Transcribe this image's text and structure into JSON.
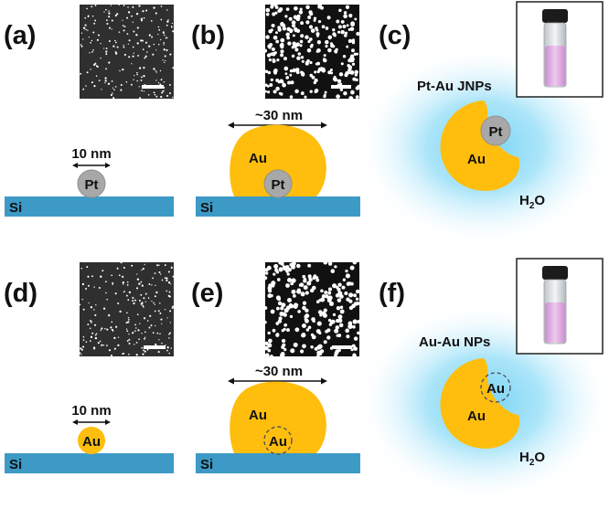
{
  "panels": {
    "a": {
      "label": "(a)",
      "size_label": "10 nm",
      "particle": "Pt",
      "substrate": "Si"
    },
    "b": {
      "label": "(b)",
      "size_label": "~30 nm",
      "outer": "Au",
      "core": "Pt",
      "substrate": "Si"
    },
    "c": {
      "label": "(c)",
      "title": "Pt-Au JNPs",
      "outer": "Au",
      "core": "Pt",
      "solvent": "H",
      "solvent_sub": "2",
      "solvent_end": "O"
    },
    "d": {
      "label": "(d)",
      "size_label": "10 nm",
      "particle": "Au",
      "substrate": "Si"
    },
    "e": {
      "label": "(e)",
      "size_label": "~30 nm",
      "outer": "Au",
      "core": "Au",
      "substrate": "Si"
    },
    "f": {
      "label": "(f)",
      "title": "Au-Au NPs",
      "outer": "Au",
      "core": "Au",
      "solvent": "H",
      "solvent_sub": "2",
      "solvent_end": "O"
    }
  },
  "colors": {
    "substrate": "#3d9ac6",
    "gold": "#ffbe0d",
    "platinum": "#a8a8a8",
    "water_glow": "#7fd4f5",
    "vial_liquid": "#d9a6d9"
  },
  "icons": {
    "scale_bar": "scale-bar",
    "vial": "vial-icon"
  }
}
